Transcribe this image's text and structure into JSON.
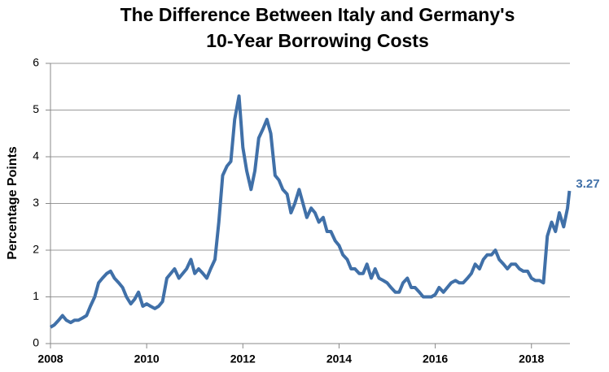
{
  "chart_data": {
    "type": "line",
    "title": [
      "The Difference Between Italy and Germany's",
      "10-Year Borrowing Costs"
    ],
    "y_label": "Percentage Points",
    "color": "#4070a8",
    "x": [
      2008.0,
      2008.08,
      2008.17,
      2008.25,
      2008.33,
      2008.42,
      2008.5,
      2008.58,
      2008.67,
      2008.75,
      2008.83,
      2008.92,
      2009.0,
      2009.08,
      2009.17,
      2009.25,
      2009.33,
      2009.42,
      2009.5,
      2009.58,
      2009.67,
      2009.75,
      2009.83,
      2009.92,
      2010.0,
      2010.08,
      2010.17,
      2010.25,
      2010.33,
      2010.42,
      2010.5,
      2010.58,
      2010.67,
      2010.75,
      2010.83,
      2010.92,
      2011.0,
      2011.08,
      2011.17,
      2011.25,
      2011.33,
      2011.42,
      2011.5,
      2011.58,
      2011.67,
      2011.75,
      2011.83,
      2011.92,
      2012.0,
      2012.08,
      2012.17,
      2012.25,
      2012.33,
      2012.42,
      2012.5,
      2012.58,
      2012.67,
      2012.75,
      2012.83,
      2012.92,
      2013.0,
      2013.08,
      2013.17,
      2013.25,
      2013.33,
      2013.42,
      2013.5,
      2013.58,
      2013.67,
      2013.75,
      2013.83,
      2013.92,
      2014.0,
      2014.08,
      2014.17,
      2014.25,
      2014.33,
      2014.42,
      2014.5,
      2014.58,
      2014.67,
      2014.75,
      2014.83,
      2014.92,
      2015.0,
      2015.08,
      2015.17,
      2015.25,
      2015.33,
      2015.42,
      2015.5,
      2015.58,
      2015.67,
      2015.75,
      2015.83,
      2015.92,
      2016.0,
      2016.08,
      2016.17,
      2016.25,
      2016.33,
      2016.42,
      2016.5,
      2016.58,
      2016.67,
      2016.75,
      2016.83,
      2016.92,
      2017.0,
      2017.08,
      2017.17,
      2017.25,
      2017.33,
      2017.42,
      2017.5,
      2017.58,
      2017.67,
      2017.75,
      2017.83,
      2017.92,
      2018.0,
      2018.08,
      2018.17,
      2018.25,
      2018.33,
      2018.42,
      2018.5,
      2018.58,
      2018.67,
      2018.75,
      2018.79
    ],
    "values": [
      0.35,
      0.4,
      0.5,
      0.6,
      0.5,
      0.45,
      0.5,
      0.5,
      0.55,
      0.6,
      0.8,
      1.0,
      1.3,
      1.4,
      1.5,
      1.55,
      1.4,
      1.3,
      1.2,
      1.0,
      0.85,
      0.95,
      1.1,
      0.8,
      0.85,
      0.8,
      0.75,
      0.8,
      0.9,
      1.4,
      1.5,
      1.6,
      1.4,
      1.5,
      1.6,
      1.8,
      1.5,
      1.6,
      1.5,
      1.4,
      1.6,
      1.8,
      2.6,
      3.6,
      3.8,
      3.9,
      4.8,
      5.3,
      4.2,
      3.7,
      3.3,
      3.7,
      4.4,
      4.6,
      4.8,
      4.5,
      3.6,
      3.5,
      3.3,
      3.2,
      2.8,
      3.0,
      3.3,
      3.0,
      2.7,
      2.9,
      2.8,
      2.6,
      2.7,
      2.4,
      2.4,
      2.2,
      2.1,
      1.9,
      1.8,
      1.6,
      1.6,
      1.5,
      1.5,
      1.7,
      1.4,
      1.6,
      1.4,
      1.35,
      1.3,
      1.2,
      1.1,
      1.1,
      1.3,
      1.4,
      1.2,
      1.2,
      1.1,
      1.0,
      1.0,
      1.0,
      1.05,
      1.2,
      1.1,
      1.2,
      1.3,
      1.35,
      1.3,
      1.3,
      1.4,
      1.5,
      1.7,
      1.6,
      1.8,
      1.9,
      1.9,
      2.0,
      1.8,
      1.7,
      1.6,
      1.7,
      1.7,
      1.6,
      1.55,
      1.55,
      1.4,
      1.35,
      1.35,
      1.3,
      2.3,
      2.6,
      2.4,
      2.8,
      2.5,
      2.9,
      3.27
    ],
    "xlim": [
      2008,
      2018.8
    ],
    "xticks": [
      2008,
      2010,
      2012,
      2014,
      2016,
      2018
    ],
    "ylim": [
      0,
      6
    ],
    "yticks": [
      0,
      1,
      2,
      3,
      4,
      5,
      6
    ],
    "grid": true
  }
}
